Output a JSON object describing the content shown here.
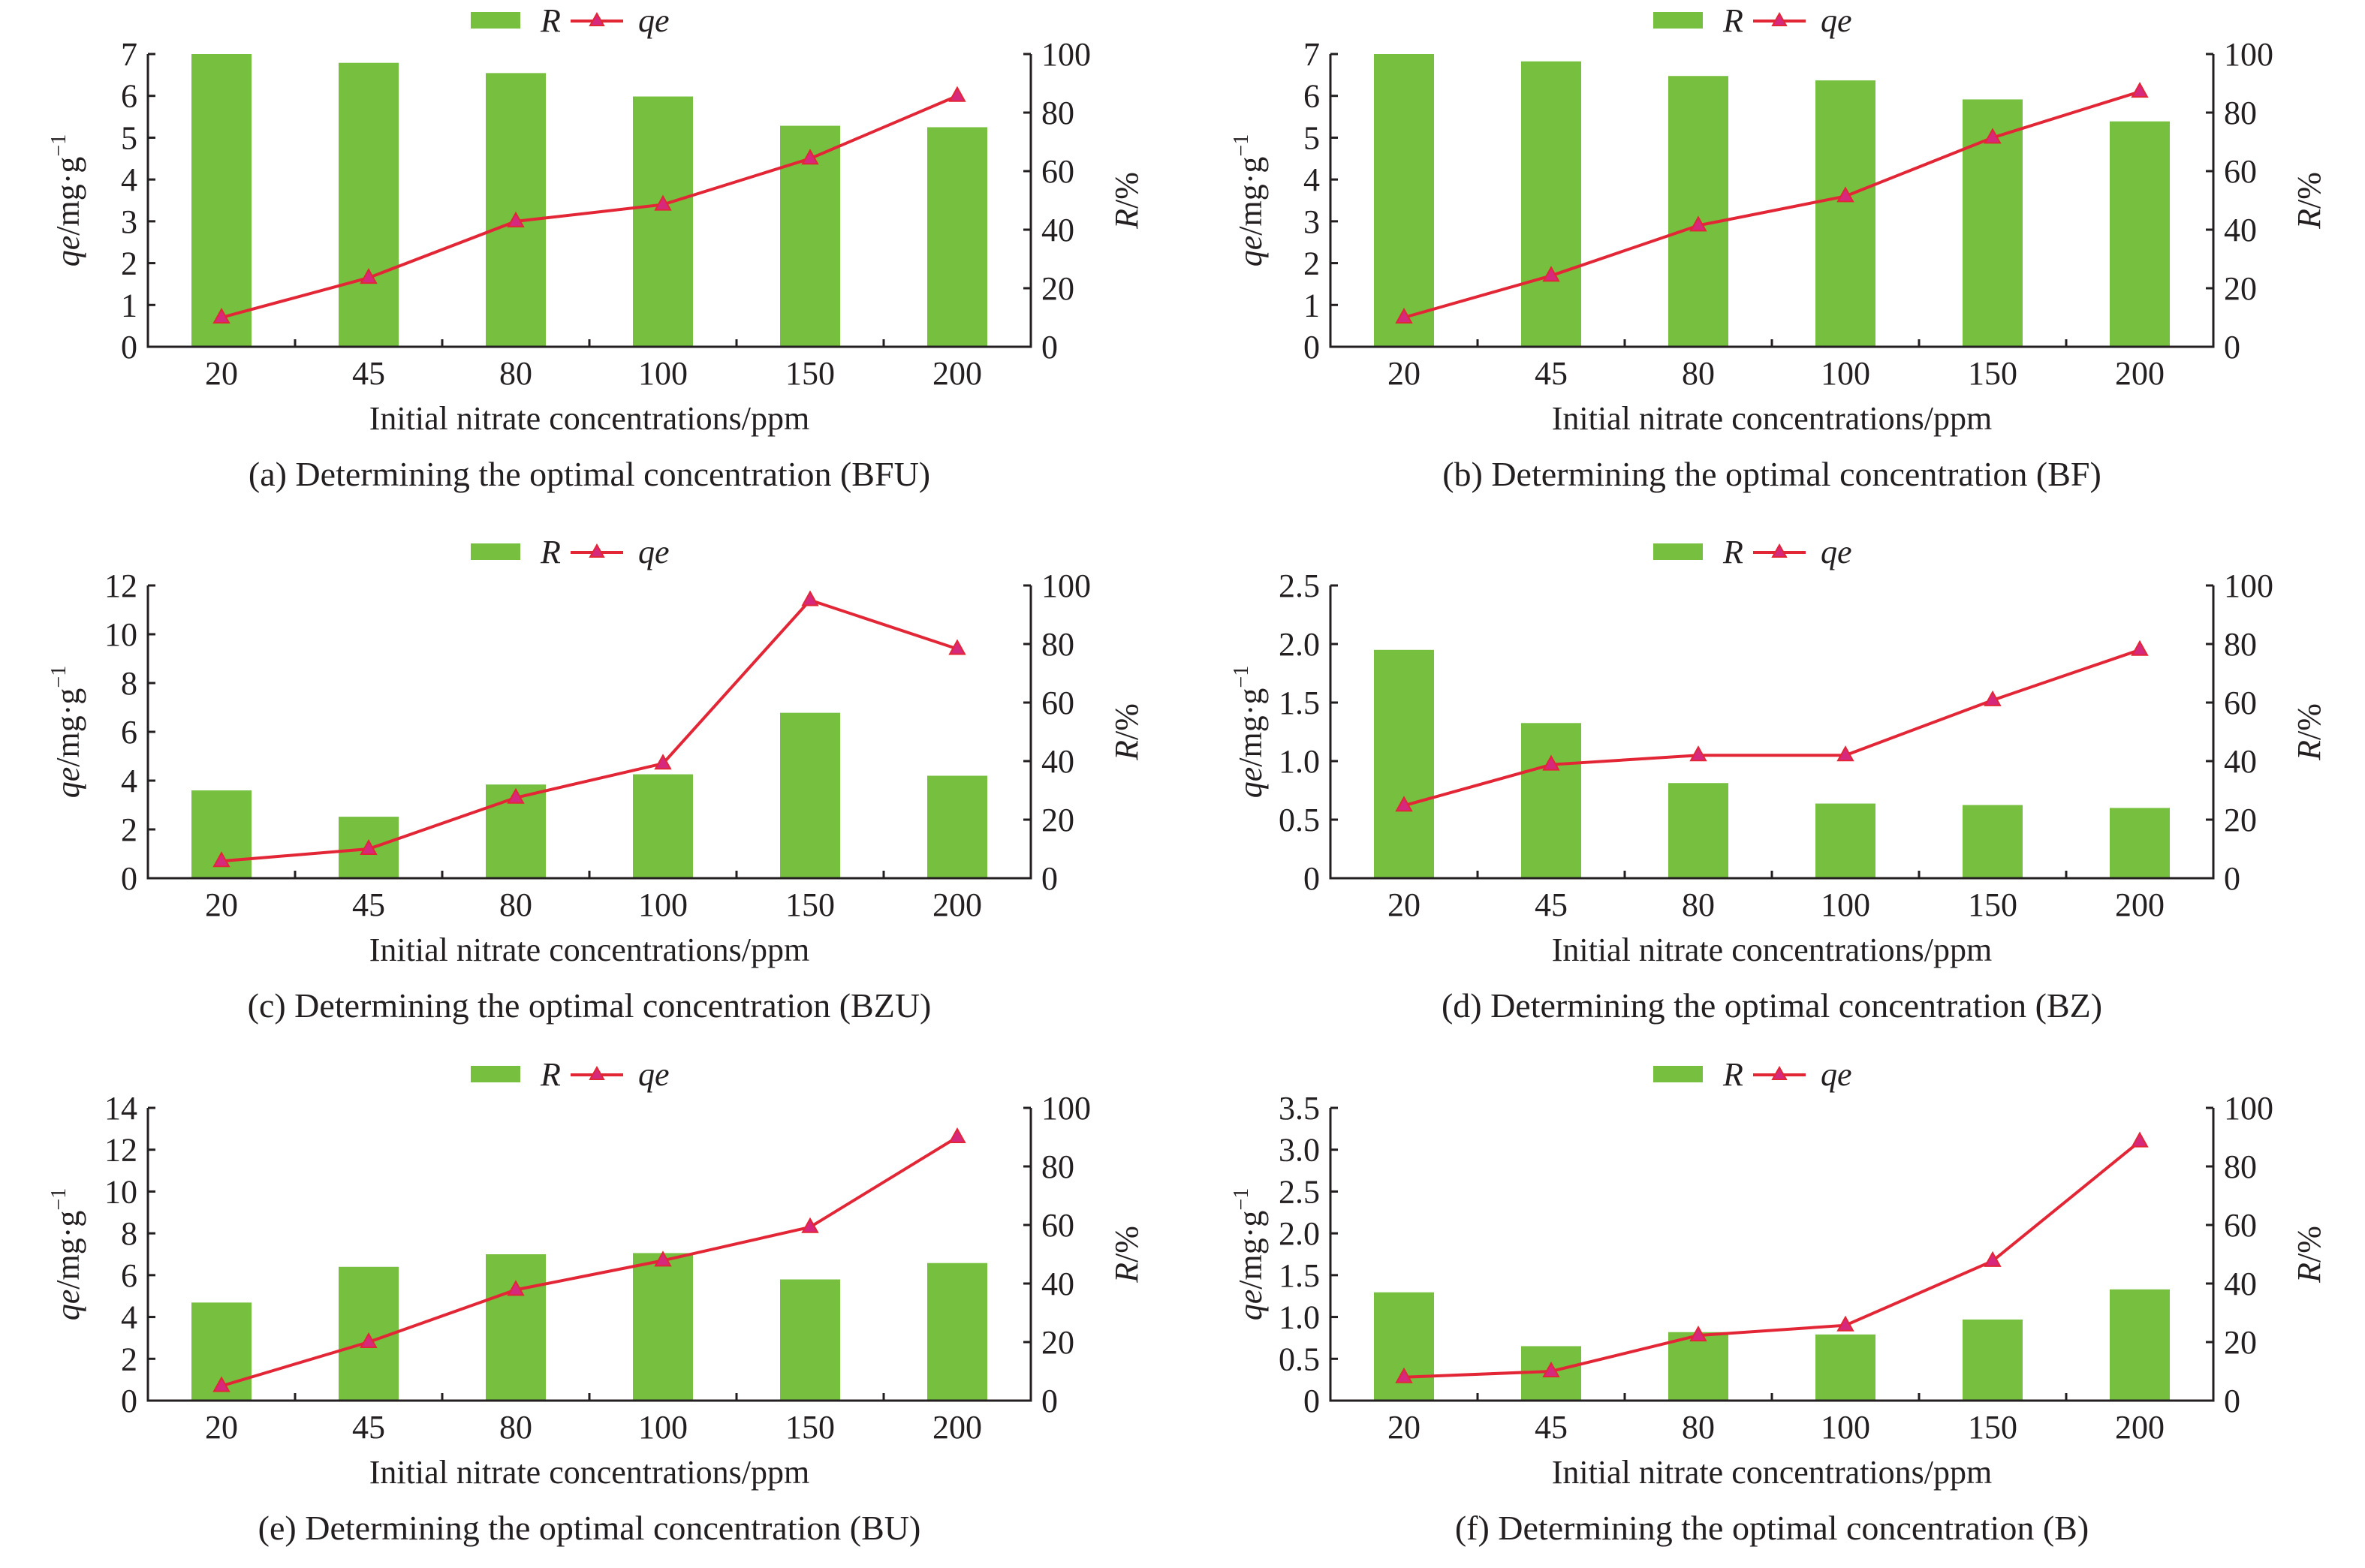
{
  "colors": {
    "bar": "#76bf3f",
    "line": "#e32636",
    "marker": "#d6287c",
    "axis": "#231f20"
  },
  "legend": {
    "bar_label": "R",
    "line_label": "qe"
  },
  "chart_data": [
    {
      "type": "bar+line",
      "id": "a",
      "caption": "(a) Determining the optimal concentration (BFU)",
      "xlabel": "Initial nitrate concentrations/ppm",
      "categories": [
        "20",
        "45",
        "80",
        "100",
        "150",
        "200"
      ],
      "ylabel_left": {
        "var": "qe",
        "unit": "/mg·g",
        "sup": "−1"
      },
      "ylabel_right": {
        "var": "R",
        "unit": "/%"
      },
      "ylim_left": [
        0,
        7
      ],
      "yticks_left": [
        "0",
        "1",
        "2",
        "3",
        "4",
        "5",
        "6",
        "7"
      ],
      "ylim_right": [
        0,
        100
      ],
      "yticks_right": [
        "0",
        "20",
        "40",
        "60",
        "80",
        "100"
      ],
      "series": [
        {
          "name": "R",
          "axis": "right",
          "type": "bar",
          "values": [
            100,
            97,
            93.5,
            85.5,
            75.5,
            75
          ]
        },
        {
          "name": "qe",
          "axis": "left",
          "type": "line",
          "values": [
            0.7,
            1.65,
            3.0,
            3.4,
            4.5,
            6.0
          ]
        }
      ]
    },
    {
      "type": "bar+line",
      "id": "b",
      "caption": "(b) Determining the optimal concentration (BF)",
      "xlabel": "Initial nitrate concentrations/ppm",
      "categories": [
        "20",
        "45",
        "80",
        "100",
        "150",
        "200"
      ],
      "ylabel_left": {
        "var": "qe",
        "unit": "/mg·g",
        "sup": "−1"
      },
      "ylabel_right": {
        "var": "R",
        "unit": "/%"
      },
      "ylim_left": [
        0,
        7
      ],
      "yticks_left": [
        "0",
        "1",
        "2",
        "3",
        "4",
        "5",
        "6",
        "7"
      ],
      "ylim_right": [
        0,
        100
      ],
      "yticks_right": [
        "0",
        "20",
        "40",
        "60",
        "80",
        "100"
      ],
      "series": [
        {
          "name": "R",
          "axis": "right",
          "type": "bar",
          "values": [
            100,
            97.5,
            92.5,
            91,
            84.5,
            77
          ]
        },
        {
          "name": "qe",
          "axis": "left",
          "type": "line",
          "values": [
            0.7,
            1.7,
            2.9,
            3.6,
            5.0,
            6.1
          ]
        }
      ]
    },
    {
      "type": "bar+line",
      "id": "c",
      "caption": "(c) Determining the optimal concentration (BZU)",
      "xlabel": "Initial nitrate concentrations/ppm",
      "categories": [
        "20",
        "45",
        "80",
        "100",
        "150",
        "200"
      ],
      "ylabel_left": {
        "var": "qe",
        "unit": "/mg·g",
        "sup": "−1"
      },
      "ylabel_right": {
        "var": "R",
        "unit": "/%"
      },
      "ylim_left": [
        0,
        12
      ],
      "yticks_left": [
        "0",
        "2",
        "4",
        "6",
        "8",
        "10",
        "12"
      ],
      "ylim_right": [
        0,
        100
      ],
      "yticks_right": [
        "0",
        "20",
        "40",
        "60",
        "80",
        "100"
      ],
      "series": [
        {
          "name": "R",
          "axis": "right",
          "type": "bar",
          "values": [
            30,
            21,
            32,
            35.5,
            56.5,
            35
          ]
        },
        {
          "name": "qe",
          "axis": "left",
          "type": "line",
          "values": [
            0.7,
            1.2,
            3.3,
            4.7,
            11.4,
            9.4
          ]
        }
      ]
    },
    {
      "type": "bar+line",
      "id": "d",
      "caption": "(d) Determining the optimal concentration (BZ)",
      "xlabel": "Initial nitrate concentrations/ppm",
      "categories": [
        "20",
        "45",
        "80",
        "100",
        "150",
        "200"
      ],
      "ylabel_left": {
        "var": "qe",
        "unit": "/mg·g",
        "sup": "−1"
      },
      "ylabel_right": {
        "var": "R",
        "unit": "/%"
      },
      "ylim_left": [
        0,
        2.5
      ],
      "yticks_left": [
        "0",
        "0.5",
        "1.0",
        "1.5",
        "2.0",
        "2.5"
      ],
      "ylim_right": [
        0,
        100
      ],
      "yticks_right": [
        "0",
        "20",
        "40",
        "60",
        "80",
        "100"
      ],
      "series": [
        {
          "name": "R",
          "axis": "right",
          "type": "bar",
          "values": [
            78,
            53,
            32.5,
            25.5,
            25,
            24
          ]
        },
        {
          "name": "qe",
          "axis": "left",
          "type": "line",
          "values": [
            0.62,
            0.97,
            1.05,
            1.05,
            1.52,
            1.95
          ]
        }
      ]
    },
    {
      "type": "bar+line",
      "id": "e",
      "caption": "(e) Determining the optimal concentration (BU)",
      "xlabel": "Initial nitrate concentrations/ppm",
      "categories": [
        "20",
        "45",
        "80",
        "100",
        "150",
        "200"
      ],
      "ylabel_left": {
        "var": "qe",
        "unit": "/mg·g",
        "sup": "−1"
      },
      "ylabel_right": {
        "var": "R",
        "unit": "/%"
      },
      "ylim_left": [
        0,
        14
      ],
      "yticks_left": [
        "0",
        "2",
        "4",
        "6",
        "8",
        "10",
        "12",
        "14"
      ],
      "ylim_right": [
        0,
        100
      ],
      "yticks_right": [
        "0",
        "20",
        "40",
        "60",
        "80",
        "100"
      ],
      "series": [
        {
          "name": "R",
          "axis": "right",
          "type": "bar",
          "values": [
            33.5,
            45.7,
            50,
            50.4,
            41.4,
            47
          ]
        },
        {
          "name": "qe",
          "axis": "left",
          "type": "line",
          "values": [
            0.7,
            2.8,
            5.3,
            6.7,
            8.3,
            12.6
          ]
        }
      ]
    },
    {
      "type": "bar+line",
      "id": "f",
      "caption": "(f) Determining the optimal concentration (B)",
      "xlabel": "Initial nitrate concentrations/ppm",
      "categories": [
        "20",
        "45",
        "80",
        "100",
        "150",
        "200"
      ],
      "ylabel_left": {
        "var": "qe",
        "unit": "/mg·g",
        "sup": "−1"
      },
      "ylabel_right": {
        "var": "R",
        "unit": "/%"
      },
      "ylim_left": [
        0,
        3.5
      ],
      "yticks_left": [
        "0",
        "0.5",
        "1.0",
        "1.5",
        "2.0",
        "2.5",
        "3.0",
        "3.5"
      ],
      "ylim_right": [
        0,
        100
      ],
      "yticks_right": [
        "0",
        "20",
        "40",
        "60",
        "80",
        "100"
      ],
      "series": [
        {
          "name": "R",
          "axis": "right",
          "type": "bar",
          "values": [
            37,
            18.6,
            23.4,
            22.6,
            27.7,
            38
          ]
        },
        {
          "name": "qe",
          "axis": "left",
          "type": "line",
          "values": [
            0.28,
            0.35,
            0.78,
            0.9,
            1.67,
            3.1
          ]
        }
      ]
    }
  ]
}
